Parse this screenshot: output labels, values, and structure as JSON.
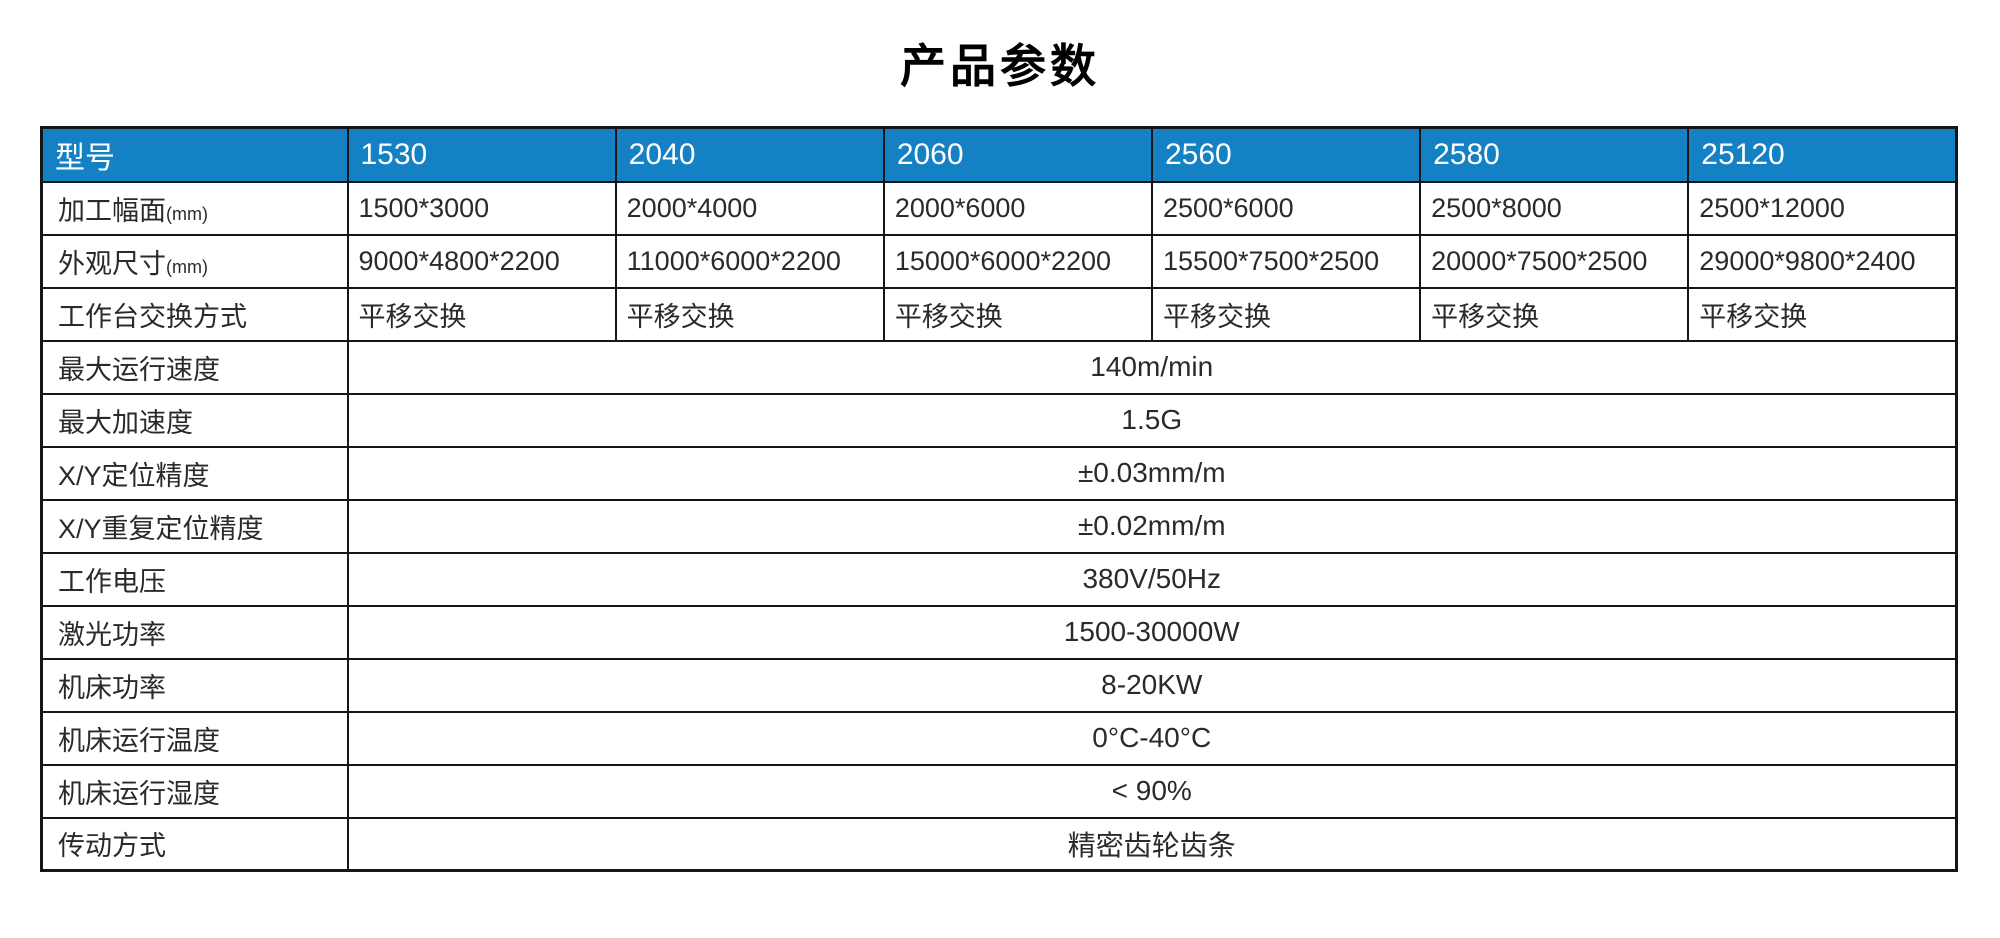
{
  "page": {
    "title": "产品参数"
  },
  "colors": {
    "header_bg": "#1581c5",
    "header_text": "#ffffff",
    "border": "#161616",
    "body_text": "#2a2a2a"
  },
  "table": {
    "header": {
      "label": "型号",
      "models": [
        "1530",
        "2040",
        "2060",
        "2560",
        "2580",
        "25120"
      ]
    },
    "rows": [
      {
        "label": "加工幅面",
        "unit": "(mm)",
        "values": [
          "1500*3000",
          "2000*4000",
          "2000*6000",
          "2500*6000",
          "2500*8000",
          "2500*12000"
        ]
      },
      {
        "label": "外观尺寸",
        "unit": "(mm)",
        "values": [
          "9000*4800*2200",
          "11000*6000*2200",
          "15000*6000*2200",
          "15500*7500*2500",
          "20000*7500*2500",
          "29000*9800*2400"
        ]
      },
      {
        "label": "工作台交换方式",
        "values": [
          "平移交换",
          "平移交换",
          "平移交换",
          "平移交换",
          "平移交换",
          "平移交换"
        ]
      },
      {
        "label": "最大运行速度",
        "value": "140m/min"
      },
      {
        "label": "最大加速度",
        "value": "1.5G"
      },
      {
        "label": "X/Y定位精度",
        "value": "±0.03mm/m"
      },
      {
        "label": "X/Y重复定位精度",
        "value": "±0.02mm/m"
      },
      {
        "label": "工作电压",
        "value": "380V/50Hz"
      },
      {
        "label": "激光功率",
        "value": "1500-30000W"
      },
      {
        "label": "机床功率",
        "value": "8-20KW"
      },
      {
        "label": "机床运行温度",
        "value": "0°C-40°C"
      },
      {
        "label": "机床运行湿度",
        "value": "< 90%"
      },
      {
        "label": "传动方式",
        "value": "精密齿轮齿条"
      }
    ]
  }
}
